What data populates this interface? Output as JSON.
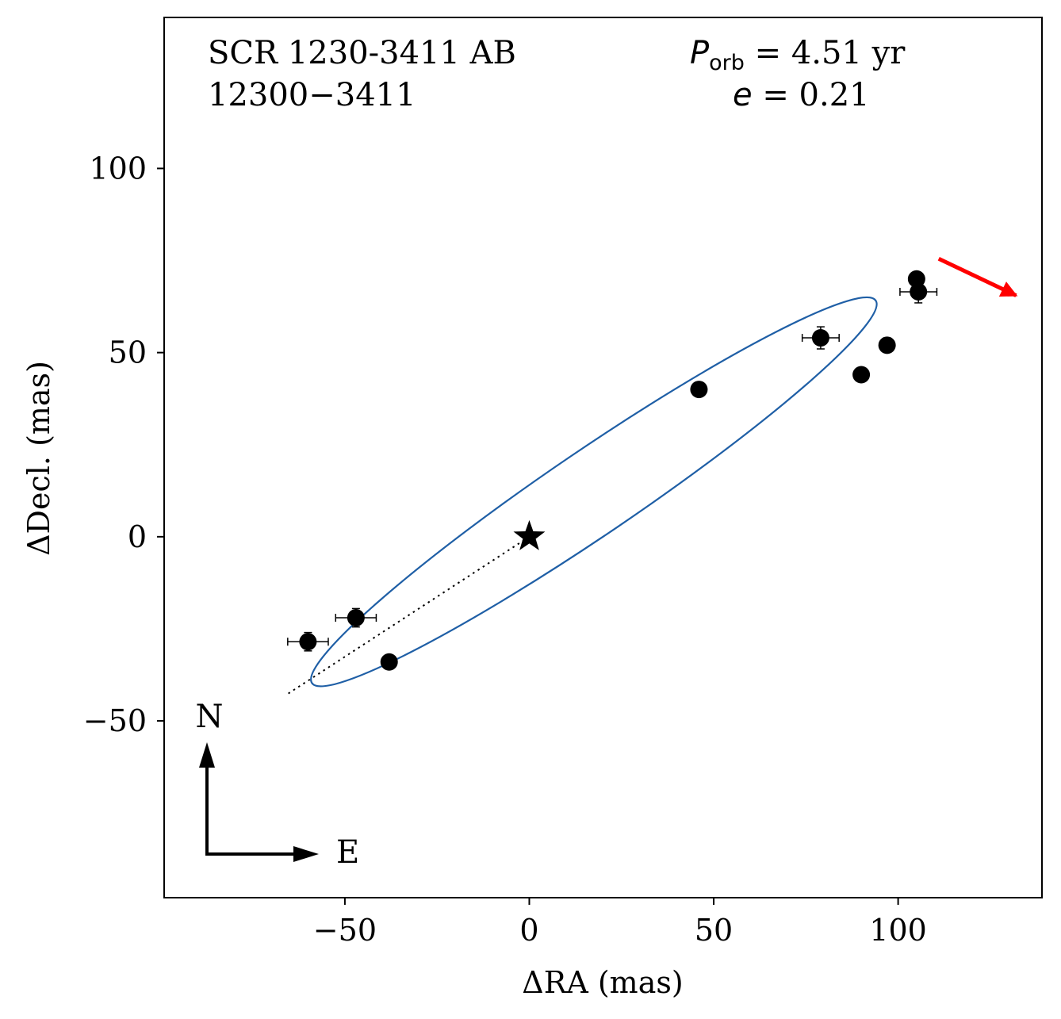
{
  "chart_data": {
    "type": "scatter",
    "title": "",
    "xlabel": "ΔRA  (mas)",
    "ylabel": "ΔDecl.  (mas)",
    "xlim": [
      -99,
      139
    ],
    "ylim": [
      -98,
      141
    ],
    "xticks": [
      -50,
      0,
      50,
      100
    ],
    "yticks": [
      -50,
      0,
      50,
      100
    ],
    "xtick_labels": [
      "−50",
      "0",
      "50",
      "100"
    ],
    "ytick_labels": [
      "−50",
      "0",
      "50",
      "100"
    ],
    "annotation_left": [
      "SCR 1230-3411 AB",
      "12300−3411"
    ],
    "annotation_right": {
      "period_symbol": "P",
      "period_subscript": "orb",
      "period_value": " =  4.51 yr",
      "ecc_symbol": "e",
      "ecc_value": " = 0.21"
    },
    "compass": {
      "north": "N",
      "east": "E"
    },
    "primary_star": {
      "x": 0,
      "y": 0
    },
    "points": [
      {
        "x": -60,
        "y": -28.5,
        "xerr": 5.5,
        "yerr": 2.5
      },
      {
        "x": -47,
        "y": -22,
        "xerr": 5.5,
        "yerr": 2.5
      },
      {
        "x": -38,
        "y": -34,
        "xerr": 0,
        "yerr": 0
      },
      {
        "x": 46,
        "y": 40,
        "xerr": 0,
        "yerr": 0
      },
      {
        "x": 79,
        "y": 54,
        "xerr": 5,
        "yerr": 3
      },
      {
        "x": 90,
        "y": 44,
        "xerr": 0,
        "yerr": 0
      },
      {
        "x": 97,
        "y": 52,
        "xerr": 0,
        "yerr": 0
      },
      {
        "x": 105,
        "y": 70,
        "xerr": 0,
        "yerr": 0
      },
      {
        "x": 105.5,
        "y": 66.5,
        "xerr": 5,
        "yerr": 3
      }
    ],
    "orbit": {
      "center": [
        17.5,
        12.2
      ],
      "semi_major": 92.4,
      "semi_minor": 11.5,
      "angle_deg": 34.2,
      "color": "#1f5fa6"
    },
    "periastron_line": {
      "from": [
        0,
        0
      ],
      "to": [
        -66,
        -43
      ]
    },
    "motion_arrow": {
      "from": [
        111,
        75.5
      ],
      "to": [
        132,
        65.5
      ],
      "color": "#ff0000"
    },
    "colors": {
      "points": "#000000",
      "orbit": "#1f5fa6",
      "arrow": "#ff0000"
    }
  }
}
